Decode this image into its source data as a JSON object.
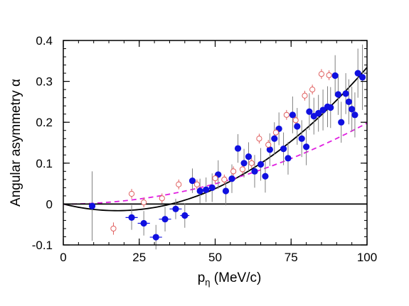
{
  "chart_data": {
    "type": "scatter",
    "title": "",
    "xlabel_base": "p",
    "xlabel_sub": "η",
    "xlabel_unit": " (MeV/c)",
    "ylabel": "Angular asymmetry α",
    "xlim": [
      0,
      100
    ],
    "ylim": [
      -0.1,
      0.4
    ],
    "x_ticks": [
      0,
      25,
      50,
      75,
      100
    ],
    "x_tick_labels": [
      "0",
      "25",
      "50",
      "75",
      "100"
    ],
    "y_ticks": [
      -0.1,
      0,
      0.1,
      0.2,
      0.3,
      0.4
    ],
    "y_tick_labels": [
      "-0.1",
      "0",
      "0.1",
      "0.2",
      "0.3",
      "0.4"
    ],
    "grid": false,
    "colors": {
      "filled": "#1010e0",
      "open": "#e06060",
      "fit": "#000000",
      "dashed": "#e020e0",
      "errorbar": "#808080"
    },
    "series": [
      {
        "marker": "filled-circle",
        "points": [
          {
            "x": 9.5,
            "y": -0.005,
            "yerr": 0.085,
            "xerr": 0
          },
          {
            "x": 22.5,
            "y": -0.033,
            "yerr": 0.03,
            "xerr": 2
          },
          {
            "x": 26.5,
            "y": -0.047,
            "yerr": 0.03,
            "xerr": 2
          },
          {
            "x": 30.5,
            "y": -0.081,
            "yerr": 0.03,
            "xerr": 2
          },
          {
            "x": 33.5,
            "y": -0.037,
            "yerr": 0.03,
            "xerr": 2
          },
          {
            "x": 37.0,
            "y": -0.012,
            "yerr": 0.025,
            "xerr": 2
          },
          {
            "x": 40.0,
            "y": -0.028,
            "yerr": 0.03,
            "xerr": 1.5
          },
          {
            "x": 42.5,
            "y": 0.057,
            "yerr": 0.03,
            "xerr": 1
          },
          {
            "x": 45.0,
            "y": 0.032,
            "yerr": 0.03,
            "xerr": 1
          },
          {
            "x": 47.0,
            "y": 0.035,
            "yerr": 0.03,
            "xerr": 1
          },
          {
            "x": 49.0,
            "y": 0.04,
            "yerr": 0.035,
            "xerr": 1
          },
          {
            "x": 51.0,
            "y": 0.072,
            "yerr": 0.035,
            "xerr": 1
          },
          {
            "x": 53.5,
            "y": 0.032,
            "yerr": 0.035,
            "xerr": 1
          },
          {
            "x": 55.5,
            "y": 0.062,
            "yerr": 0.035,
            "xerr": 1
          },
          {
            "x": 57.5,
            "y": 0.136,
            "yerr": 0.035,
            "xerr": 1
          },
          {
            "x": 59.5,
            "y": 0.1,
            "yerr": 0.035,
            "xerr": 1
          },
          {
            "x": 61.0,
            "y": 0.116,
            "yerr": 0.035,
            "xerr": 1
          },
          {
            "x": 63.0,
            "y": 0.08,
            "yerr": 0.04,
            "xerr": 1
          },
          {
            "x": 65.0,
            "y": 0.097,
            "yerr": 0.04,
            "xerr": 1
          },
          {
            "x": 66.5,
            "y": 0.068,
            "yerr": 0.04,
            "xerr": 1
          },
          {
            "x": 68.0,
            "y": 0.133,
            "yerr": 0.04,
            "xerr": 1
          },
          {
            "x": 69.5,
            "y": 0.16,
            "yerr": 0.04,
            "xerr": 1
          },
          {
            "x": 71.0,
            "y": 0.184,
            "yerr": 0.04,
            "xerr": 1
          },
          {
            "x": 72.5,
            "y": 0.135,
            "yerr": 0.04,
            "xerr": 1
          },
          {
            "x": 74.0,
            "y": 0.112,
            "yerr": 0.04,
            "xerr": 1
          },
          {
            "x": 75.5,
            "y": 0.218,
            "yerr": 0.045,
            "xerr": 1
          },
          {
            "x": 77.0,
            "y": 0.19,
            "yerr": 0.045,
            "xerr": 1
          },
          {
            "x": 78.5,
            "y": 0.16,
            "yerr": 0.045,
            "xerr": 1
          },
          {
            "x": 80.0,
            "y": 0.14,
            "yerr": 0.045,
            "xerr": 1
          },
          {
            "x": 81.0,
            "y": 0.226,
            "yerr": 0.045,
            "xerr": 1
          },
          {
            "x": 82.5,
            "y": 0.215,
            "yerr": 0.045,
            "xerr": 1
          },
          {
            "x": 84.0,
            "y": 0.222,
            "yerr": 0.045,
            "xerr": 1
          },
          {
            "x": 85.5,
            "y": 0.23,
            "yerr": 0.05,
            "xerr": 1
          },
          {
            "x": 87.0,
            "y": 0.238,
            "yerr": 0.05,
            "xerr": 1
          },
          {
            "x": 88.0,
            "y": 0.236,
            "yerr": 0.05,
            "xerr": 1
          },
          {
            "x": 89.5,
            "y": 0.314,
            "yerr": 0.05,
            "xerr": 1
          },
          {
            "x": 90.5,
            "y": 0.268,
            "yerr": 0.05,
            "xerr": 1
          },
          {
            "x": 91.5,
            "y": 0.2,
            "yerr": 0.05,
            "xerr": 1
          },
          {
            "x": 93.0,
            "y": 0.27,
            "yerr": 0.05,
            "xerr": 1
          },
          {
            "x": 94.0,
            "y": 0.25,
            "yerr": 0.055,
            "xerr": 1
          },
          {
            "x": 95.0,
            "y": 0.232,
            "yerr": 0.055,
            "xerr": 1
          },
          {
            "x": 96.0,
            "y": 0.218,
            "yerr": 0.055,
            "xerr": 1
          },
          {
            "x": 97.0,
            "y": 0.32,
            "yerr": 0.06,
            "xerr": 1
          },
          {
            "x": 98.5,
            "y": 0.31,
            "yerr": 0.08,
            "xerr": 1
          }
        ]
      },
      {
        "marker": "open-circle",
        "points": [
          {
            "x": 16.5,
            "y": -0.06,
            "yerr": 0.015,
            "xerr": 0
          },
          {
            "x": 22.5,
            "y": 0.025,
            "yerr": 0.012,
            "xerr": 0
          },
          {
            "x": 26.5,
            "y": 0.004,
            "yerr": 0.012,
            "xerr": 0
          },
          {
            "x": 32.5,
            "y": 0.014,
            "yerr": 0.012,
            "xerr": 0
          },
          {
            "x": 38.0,
            "y": 0.048,
            "yerr": 0.012,
            "xerr": 0
          },
          {
            "x": 44.0,
            "y": 0.048,
            "yerr": 0.012,
            "xerr": 0
          },
          {
            "x": 50.0,
            "y": 0.063,
            "yerr": 0.012,
            "xerr": 0
          },
          {
            "x": 53.0,
            "y": 0.06,
            "yerr": 0.012,
            "xerr": 0
          },
          {
            "x": 56.0,
            "y": 0.08,
            "yerr": 0.012,
            "xerr": 0
          },
          {
            "x": 59.0,
            "y": 0.085,
            "yerr": 0.012,
            "xerr": 0
          },
          {
            "x": 62.0,
            "y": 0.1,
            "yerr": 0.012,
            "xerr": 0
          },
          {
            "x": 64.5,
            "y": 0.16,
            "yerr": 0.012,
            "xerr": 0
          },
          {
            "x": 67.5,
            "y": 0.145,
            "yerr": 0.012,
            "xerr": 0
          },
          {
            "x": 70.0,
            "y": 0.175,
            "yerr": 0.012,
            "xerr": 0
          },
          {
            "x": 73.5,
            "y": 0.218,
            "yerr": 0.012,
            "xerr": 0
          },
          {
            "x": 76.5,
            "y": 0.205,
            "yerr": 0.012,
            "xerr": 0
          },
          {
            "x": 79.5,
            "y": 0.265,
            "yerr": 0.012,
            "xerr": 0
          },
          {
            "x": 82.0,
            "y": 0.28,
            "yerr": 0.012,
            "xerr": 0
          },
          {
            "x": 85.0,
            "y": 0.318,
            "yerr": 0.012,
            "xerr": 0
          },
          {
            "x": 87.5,
            "y": 0.315,
            "yerr": 0.012,
            "xerr": 0
          }
        ]
      }
    ],
    "curves": [
      {
        "style": "solid",
        "kind": "poly",
        "coefficients": [
          0,
          -0.00183,
          5.17e-05
        ]
      },
      {
        "style": "dashed",
        "kind": "poly",
        "coefficients": [
          0,
          0.0,
          1.98e-05
        ]
      },
      {
        "style": "solid",
        "kind": "constant",
        "value": 0
      }
    ]
  }
}
